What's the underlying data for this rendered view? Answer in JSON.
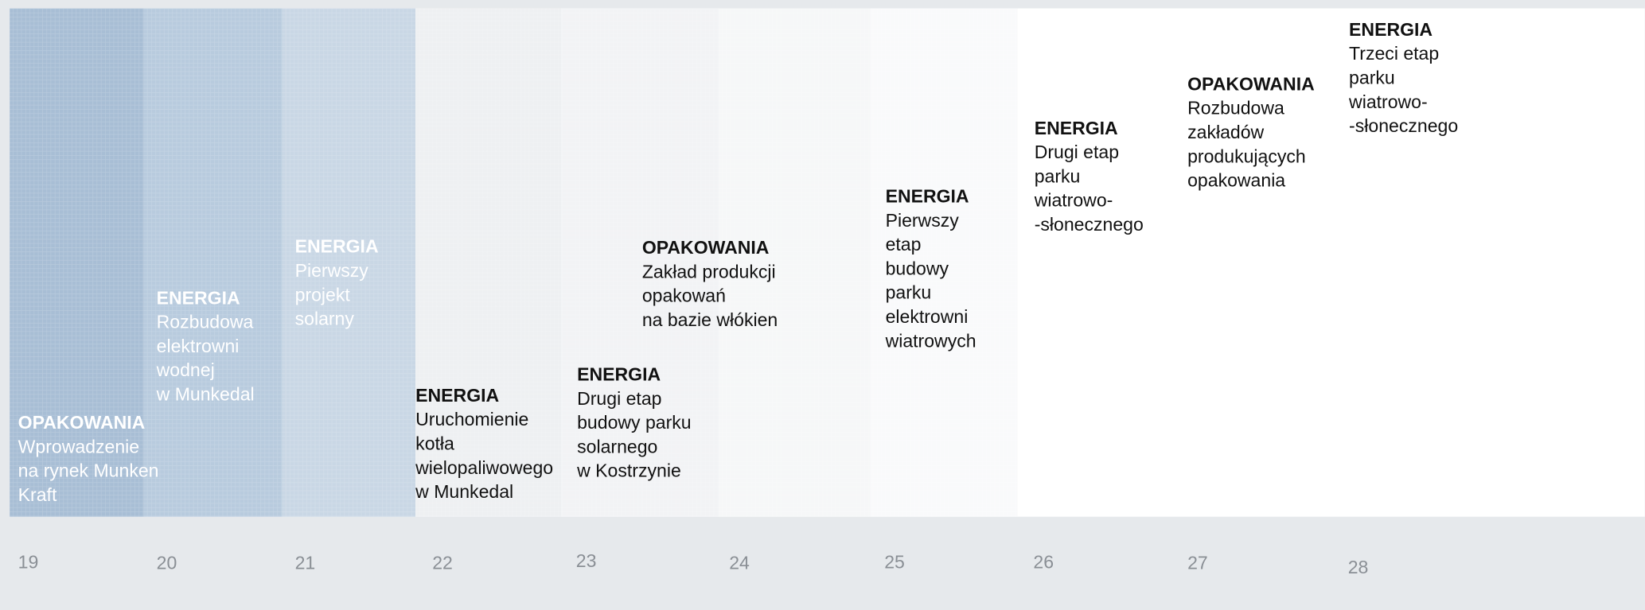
{
  "items": [
    {
      "year": "19",
      "category": "OPAKOWANIA",
      "lines": [
        "Wprowadzenie",
        "na rynek Munken",
        "Kraft"
      ]
    },
    {
      "year": "20",
      "category": "ENERGIA",
      "lines": [
        "Rozbudowa",
        "elektrowni",
        "wodnej",
        "w Munkedal"
      ]
    },
    {
      "year": "21",
      "category": "ENERGIA",
      "lines": [
        "Pierwszy",
        "projekt",
        "solarny"
      ]
    },
    {
      "year": "22",
      "category": "ENERGIA",
      "lines": [
        "Uruchomienie",
        "kotła",
        "wielopaliwowego",
        "w Munkedal"
      ]
    },
    {
      "year": "23",
      "category": "ENERGIA",
      "lines": [
        "Drugi etap",
        "budowy parku",
        "solarnego",
        "w Kostrzynie"
      ]
    },
    {
      "year": "24",
      "category": "OPAKOWANIA",
      "lines": [
        "Zakład produkcji",
        "opakowań",
        "na bazie włókien"
      ]
    },
    {
      "year": "25",
      "category": "ENERGIA",
      "lines": [
        "Pierwszy",
        "etap",
        "budowy",
        "parku",
        "elektrowni",
        "wiatrowych"
      ]
    },
    {
      "year": "26",
      "category": "ENERGIA",
      "lines": [
        "Drugi etap",
        "parku",
        "wiatrowo-",
        "-słonecznego"
      ]
    },
    {
      "year": "27",
      "category": "OPAKOWANIA",
      "lines": [
        "Rozbudowa",
        "zakładów",
        "produkujących",
        "opakowania"
      ]
    },
    {
      "year": "28",
      "category": "ENERGIA",
      "lines": [
        "Trzeci etap",
        "parku",
        "wiatrowo-",
        "-słonecznego"
      ]
    }
  ]
}
